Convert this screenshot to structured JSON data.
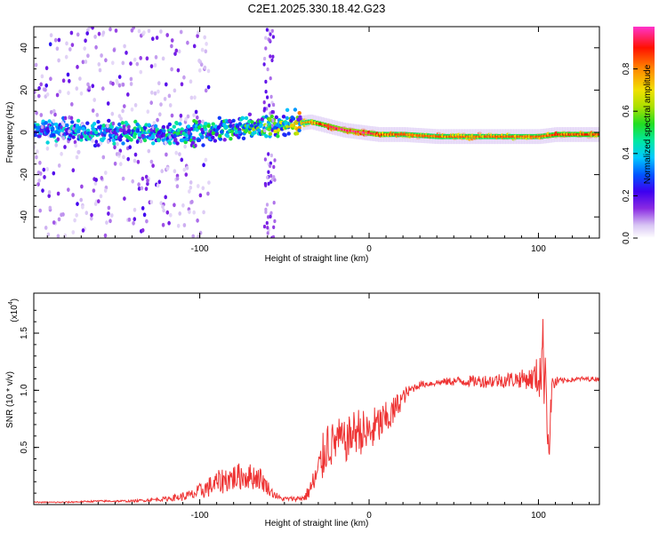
{
  "page_title": "C2E1.2025.330.18.42.G23",
  "chart_data": [
    {
      "type": "heatmap",
      "title": "C2E1.2025.330.18.42.G23",
      "xlabel": "Height of straight line (km)",
      "ylabel": "Frequency (Hz)",
      "xlim": [
        -198,
        136
      ],
      "ylim": [
        -50,
        50
      ],
      "xticks": [
        -100,
        0,
        100
      ],
      "yticks": [
        -40,
        -20,
        0,
        20,
        40
      ],
      "xtick_labels": [
        "-100",
        "0",
        "100"
      ],
      "ytick_labels": [
        "-40",
        "-20",
        "0",
        "20",
        "40"
      ],
      "colorbar": {
        "label": "Normalized spectral amplitude",
        "range": [
          0,
          1
        ],
        "ticks": [
          0.0,
          0.2,
          0.4,
          0.6,
          0.8
        ],
        "tick_labels": [
          "0.0",
          "0.2",
          "0.4",
          "0.6",
          "0.8"
        ]
      },
      "ridge": {
        "description_points_x": [
          -190,
          -150,
          -110,
          -80,
          -60,
          -45,
          -35,
          -25,
          -15,
          -5,
          5,
          20,
          40,
          60,
          80,
          100,
          110,
          136
        ],
        "frequency_hz": [
          1,
          0,
          -1,
          2,
          3,
          4,
          5,
          3,
          1,
          0,
          -1,
          -1,
          -2,
          -2,
          -2,
          -2,
          -1,
          -1
        ],
        "peak_amplitude": [
          0.35,
          0.4,
          0.45,
          0.5,
          0.6,
          0.7,
          0.85,
          0.95,
          1.0,
          1.0,
          0.9,
          0.85,
          0.85,
          0.85,
          0.85,
          0.85,
          0.9,
          0.9
        ]
      }
    },
    {
      "type": "line",
      "xlabel": "Height of straight line (km)",
      "ylabel": "SNR (10 * v/v)",
      "y_multiplier": "(x10",
      "y_multiplier_exp": "4",
      "y_multiplier_close": ")",
      "xlim": [
        -198,
        136
      ],
      "ylim": [
        0,
        1.85
      ],
      "xticks": [
        -100,
        0,
        100
      ],
      "yticks": [
        0.5,
        1.0,
        1.5
      ],
      "xtick_labels": [
        "-100",
        "0",
        "100"
      ],
      "ytick_labels": [
        "0.5",
        "1.0",
        "1.5"
      ],
      "series": [
        {
          "name": "SNR",
          "color": "#ee3333",
          "x": [
            -198,
            -180,
            -160,
            -140,
            -120,
            -105,
            -95,
            -85,
            -75,
            -65,
            -57,
            -52,
            -45,
            -38,
            -33,
            -30,
            -27,
            -25,
            -22,
            -18,
            -14,
            -10,
            -6,
            -2,
            2,
            6,
            10,
            14,
            18,
            22,
            26,
            30,
            36,
            42,
            50,
            60,
            70,
            80,
            90,
            96,
            100,
            103,
            105,
            106,
            108,
            112,
            118,
            125,
            136
          ],
          "y": [
            0.02,
            0.02,
            0.03,
            0.03,
            0.05,
            0.08,
            0.15,
            0.22,
            0.25,
            0.24,
            0.1,
            0.05,
            0.05,
            0.06,
            0.18,
            0.28,
            0.42,
            0.55,
            0.52,
            0.58,
            0.54,
            0.62,
            0.66,
            0.6,
            0.65,
            0.7,
            0.74,
            0.8,
            0.9,
            0.97,
            1.02,
            1.05,
            1.06,
            1.07,
            1.08,
            1.08,
            1.08,
            1.09,
            1.1,
            1.1,
            1.12,
            1.3,
            1.1,
            0.4,
            1.05,
            1.08,
            1.09,
            1.1,
            1.1
          ],
          "noise": [
            0.005,
            0.006,
            0.008,
            0.01,
            0.02,
            0.05,
            0.09,
            0.12,
            0.12,
            0.11,
            0.04,
            0.02,
            0.02,
            0.03,
            0.12,
            0.18,
            0.22,
            0.24,
            0.2,
            0.18,
            0.18,
            0.2,
            0.2,
            0.22,
            0.2,
            0.18,
            0.16,
            0.14,
            0.1,
            0.06,
            0.04,
            0.03,
            0.03,
            0.03,
            0.04,
            0.05,
            0.06,
            0.07,
            0.08,
            0.1,
            0.2,
            0.4,
            0.5,
            0.2,
            0.1,
            0.03,
            0.02,
            0.02,
            0.02
          ]
        }
      ]
    }
  ]
}
